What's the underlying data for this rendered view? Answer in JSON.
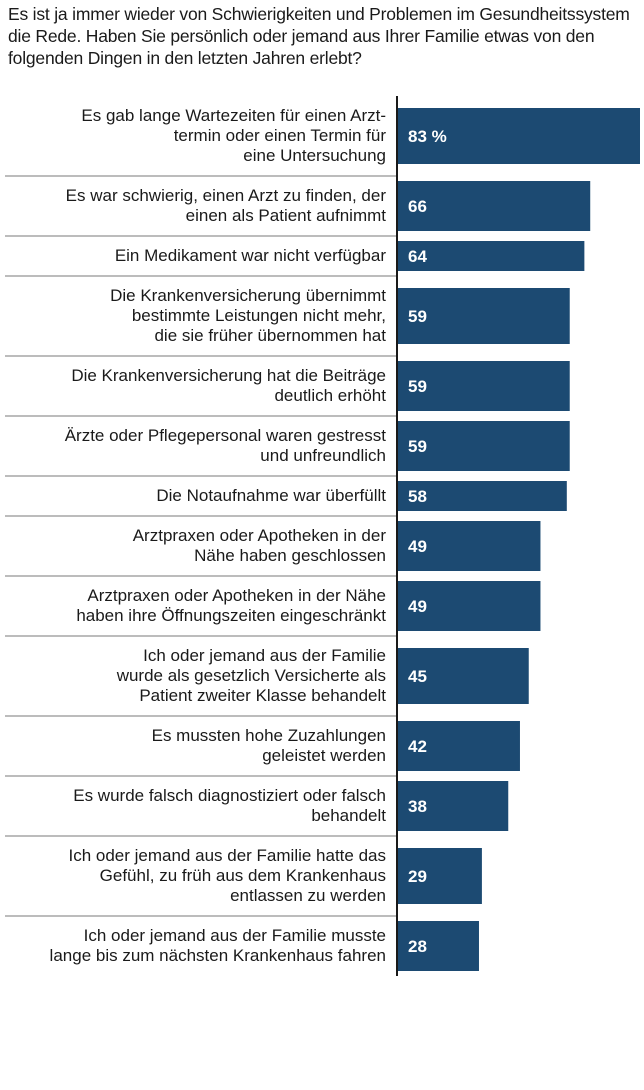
{
  "page": {
    "title": "Es ist ja immer wieder von Schwierigkeiten und Problemen im Gesundheitssystem die Rede. Haben Sie persönlich oder jemand aus Ihrer Familie etwas von den folgenden Dingen in den letzten Jahren erlebt?"
  },
  "colors": {
    "bar": "#1c4a72",
    "axis": "#1a1a1a",
    "separator": "#7a7a7a",
    "text": "#1a1a1a",
    "value_text": "#ffffff"
  },
  "chart_data": {
    "type": "bar",
    "orientation": "horizontal",
    "title": "Es ist ja immer wieder von Schwierigkeiten und Problemen im Gesundheitssystem die Rede. Haben Sie persönlich oder jemand aus Ihrer Familie etwas von den folgenden Dingen in den letzten Jahren erlebt?",
    "unit": "%",
    "xlim": [
      0,
      83
    ],
    "categories": [
      [
        "Es gab lange Wartezeiten für einen Arzt-",
        "termin oder einen Termin für",
        "eine Untersuchung"
      ],
      [
        "Es war schwierig, einen Arzt zu finden, der",
        "einen als Patient aufnimmt"
      ],
      [
        "Ein Medikament war nicht verfügbar"
      ],
      [
        "Die Krankenversicherung übernimmt",
        "bestimmte Leistungen nicht mehr,",
        "die sie früher übernommen hat"
      ],
      [
        "Die Krankenversicherung hat die Beiträge",
        "deutlich erhöht"
      ],
      [
        "Ärzte oder Pflegepersonal waren gestresst",
        "und unfreundlich"
      ],
      [
        "Die Notaufnahme war überfüllt"
      ],
      [
        "Arztpraxen oder Apotheken in der",
        "Nähe haben geschlossen"
      ],
      [
        "Arztpraxen oder Apotheken in der Nähe",
        "haben ihre Öffnungszeiten eingeschränkt"
      ],
      [
        "Ich oder jemand aus der Familie",
        "wurde als gesetzlich Versicherte als",
        "Patient zweiter Klasse behandelt"
      ],
      [
        "Es mussten hohe Zuzahlungen",
        "geleistet werden"
      ],
      [
        "Es wurde falsch diagnostiziert oder falsch",
        "behandelt"
      ],
      [
        "Ich oder jemand aus der Familie hatte das",
        "Gefühl, zu früh aus dem Krankenhaus",
        "entlassen zu werden"
      ],
      [
        "Ich oder jemand aus der Familie musste",
        "lange bis zum nächsten Krankenhaus fahren"
      ]
    ],
    "values": [
      83,
      66,
      64,
      59,
      59,
      59,
      58,
      49,
      49,
      45,
      42,
      38,
      29,
      28
    ],
    "value_labels": [
      "83 %",
      "66",
      "64",
      "59",
      "59",
      "59",
      "58",
      "49",
      "49",
      "45",
      "42",
      "38",
      "29",
      "28"
    ]
  }
}
